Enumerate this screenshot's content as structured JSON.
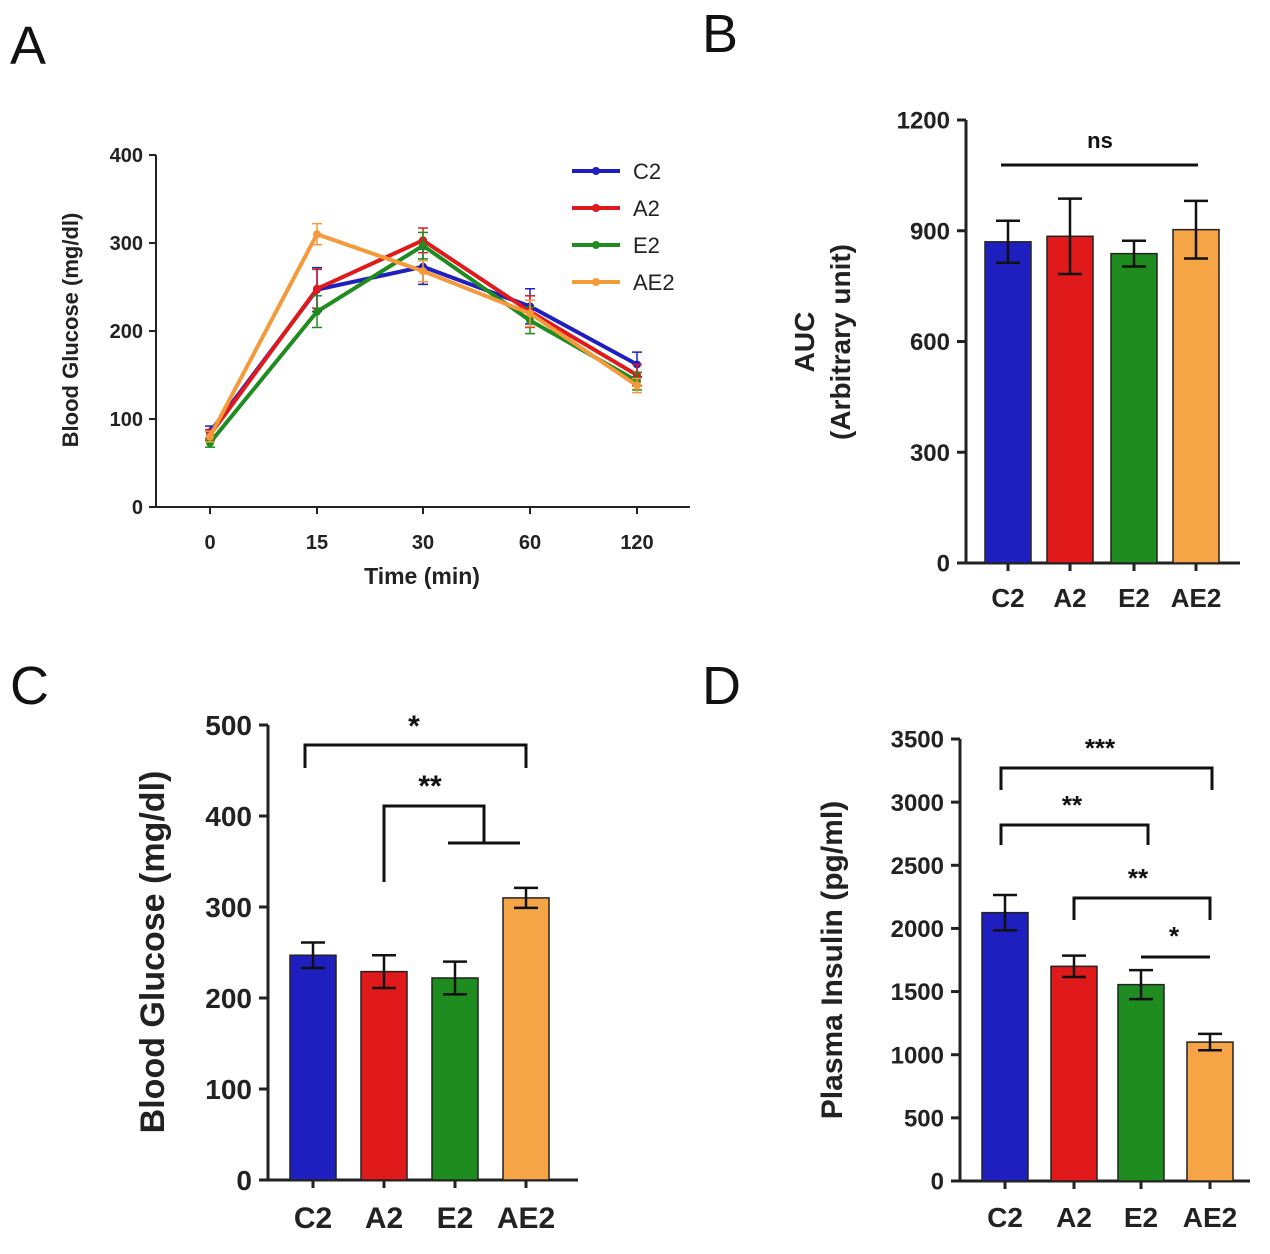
{
  "figure": {
    "panel_labels": [
      "A",
      "B",
      "C",
      "D"
    ]
  },
  "chart_data": [
    {
      "id": "A",
      "type": "line",
      "title": "",
      "xlabel": "Time (min)",
      "ylabel": "Blood Glucose (mg/dl)",
      "categories": [
        "0",
        "15",
        "30",
        "60",
        "120"
      ],
      "ylim": [
        0,
        400
      ],
      "yticks": [
        0,
        100,
        200,
        300,
        400
      ],
      "legend_position": "top-right",
      "grid": false,
      "series": [
        {
          "name": "C2",
          "color": "#1f1fbf",
          "values": [
            85,
            247,
            273,
            228,
            162
          ],
          "errors": [
            7,
            25,
            20,
            20,
            14
          ]
        },
        {
          "name": "A2",
          "color": "#e0191b",
          "values": [
            82,
            248,
            303,
            222,
            150
          ],
          "errors": [
            6,
            22,
            14,
            18,
            12
          ]
        },
        {
          "name": "E2",
          "color": "#1f8c1f",
          "values": [
            73,
            222,
            297,
            212,
            143
          ],
          "errors": [
            5,
            18,
            15,
            15,
            10
          ]
        },
        {
          "name": "AE2",
          "color": "#f59a3a",
          "values": [
            80,
            310,
            268,
            220,
            138
          ],
          "errors": [
            6,
            12,
            12,
            15,
            8
          ]
        }
      ]
    },
    {
      "id": "B",
      "type": "bar",
      "title": "",
      "xlabel": "",
      "ylabel_line1": "AUC",
      "ylabel_line2": "(Arbitrary unit)",
      "categories": [
        "C2",
        "A2",
        "E2",
        "AE2"
      ],
      "values": [
        870,
        885,
        838,
        903
      ],
      "errors": [
        57,
        102,
        35,
        78
      ],
      "colors": [
        "#1f1fbf",
        "#e0191b",
        "#1f8c1f",
        "#f5a446"
      ],
      "ylim": [
        0,
        1200
      ],
      "yticks": [
        0,
        300,
        600,
        900,
        1200
      ],
      "annotations": [
        {
          "from": 0,
          "to": 3,
          "label": "ns",
          "style": "line"
        }
      ]
    },
    {
      "id": "C",
      "type": "bar",
      "title": "",
      "xlabel": "",
      "ylabel": "Blood Glucose (mg/dl)",
      "categories": [
        "C2",
        "A2",
        "E2",
        "AE2"
      ],
      "values": [
        247,
        229,
        222,
        310
      ],
      "errors": [
        14,
        18,
        18,
        11
      ],
      "colors": [
        "#1f1fbf",
        "#e0191b",
        "#1f8c1f",
        "#f5a446"
      ],
      "ylim": [
        0,
        500
      ],
      "yticks": [
        0,
        100,
        200,
        300,
        400,
        500
      ],
      "annotations": [
        {
          "from": 0,
          "to": 3,
          "label": "*",
          "style": "bracket"
        },
        {
          "from": 1,
          "to_group": [
            2,
            3
          ],
          "label": "**",
          "style": "group-bracket"
        }
      ]
    },
    {
      "id": "D",
      "type": "bar",
      "title": "",
      "xlabel": "",
      "ylabel": "Plasma Insulin (pg/ml)",
      "categories": [
        "C2",
        "A2",
        "E2",
        "AE2"
      ],
      "values": [
        2125,
        1700,
        1555,
        1100
      ],
      "errors": [
        140,
        85,
        115,
        65
      ],
      "colors": [
        "#1f1fbf",
        "#e0191b",
        "#1f8c1f",
        "#f5a446"
      ],
      "ylim": [
        0,
        3500
      ],
      "yticks": [
        0,
        500,
        1000,
        1500,
        2000,
        2500,
        3000,
        3500
      ],
      "annotations": [
        {
          "from": 0,
          "to": 3,
          "label": "***",
          "style": "bracket"
        },
        {
          "from": 0,
          "to": 2,
          "label": "**",
          "style": "bracket"
        },
        {
          "from": 1,
          "to": 3,
          "label": "**",
          "style": "bracket"
        },
        {
          "from": 2,
          "to": 3,
          "label": "*",
          "style": "line"
        }
      ]
    }
  ]
}
